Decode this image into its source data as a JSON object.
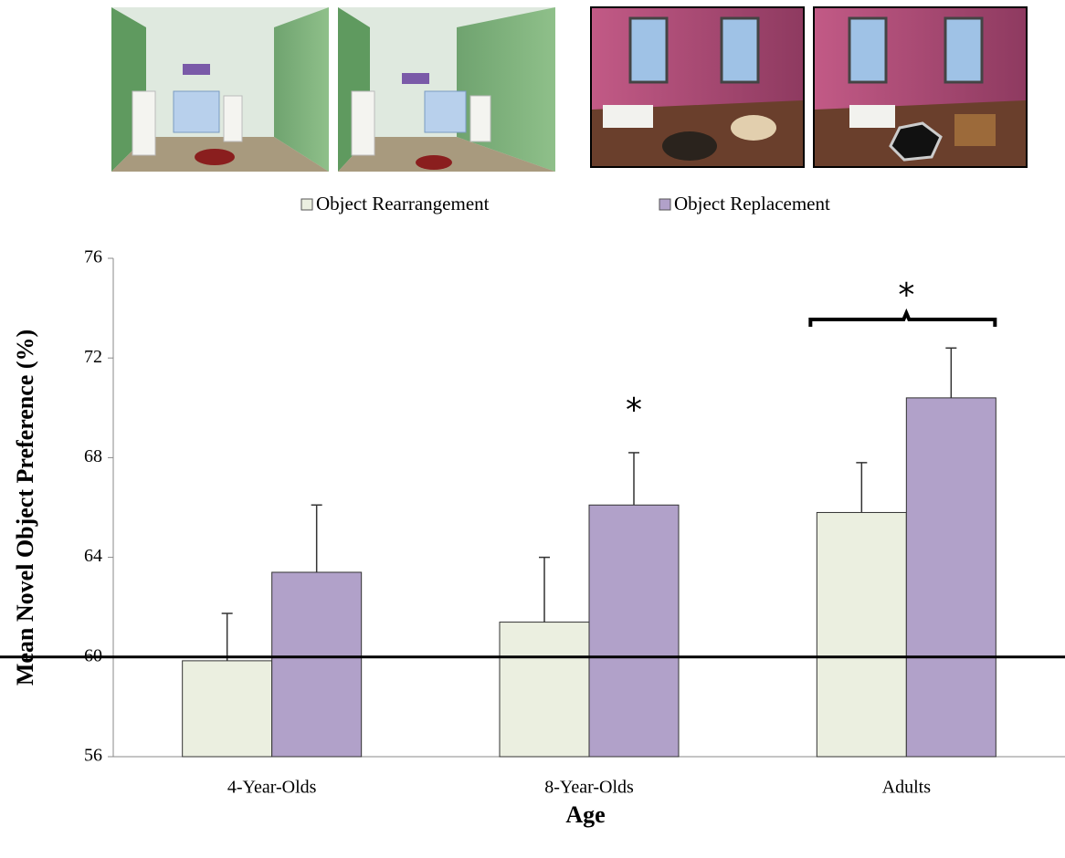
{
  "chart_data": {
    "type": "bar",
    "categories": [
      "4-Year-Olds",
      "8-Year-Olds",
      "Adults"
    ],
    "series": [
      {
        "name": "Object Rearrangement",
        "color": "#ebefe0",
        "values": [
          59.85,
          61.4,
          65.8
        ],
        "errors": [
          1.9,
          2.6,
          2.0
        ]
      },
      {
        "name": "Object Replacement",
        "color": "#b1a1c9",
        "values": [
          63.4,
          66.1,
          70.4
        ],
        "errors": [
          2.7,
          2.1,
          2.0
        ]
      }
    ],
    "ylim": [
      56,
      76
    ],
    "yticks": [
      56,
      60,
      64,
      68,
      72,
      76
    ],
    "xlabel": "Age",
    "ylabel": "Mean Novel Object Preference (%)",
    "reference_line": 60,
    "annotations": [
      "*",
      "*"
    ],
    "legend": "top"
  }
}
